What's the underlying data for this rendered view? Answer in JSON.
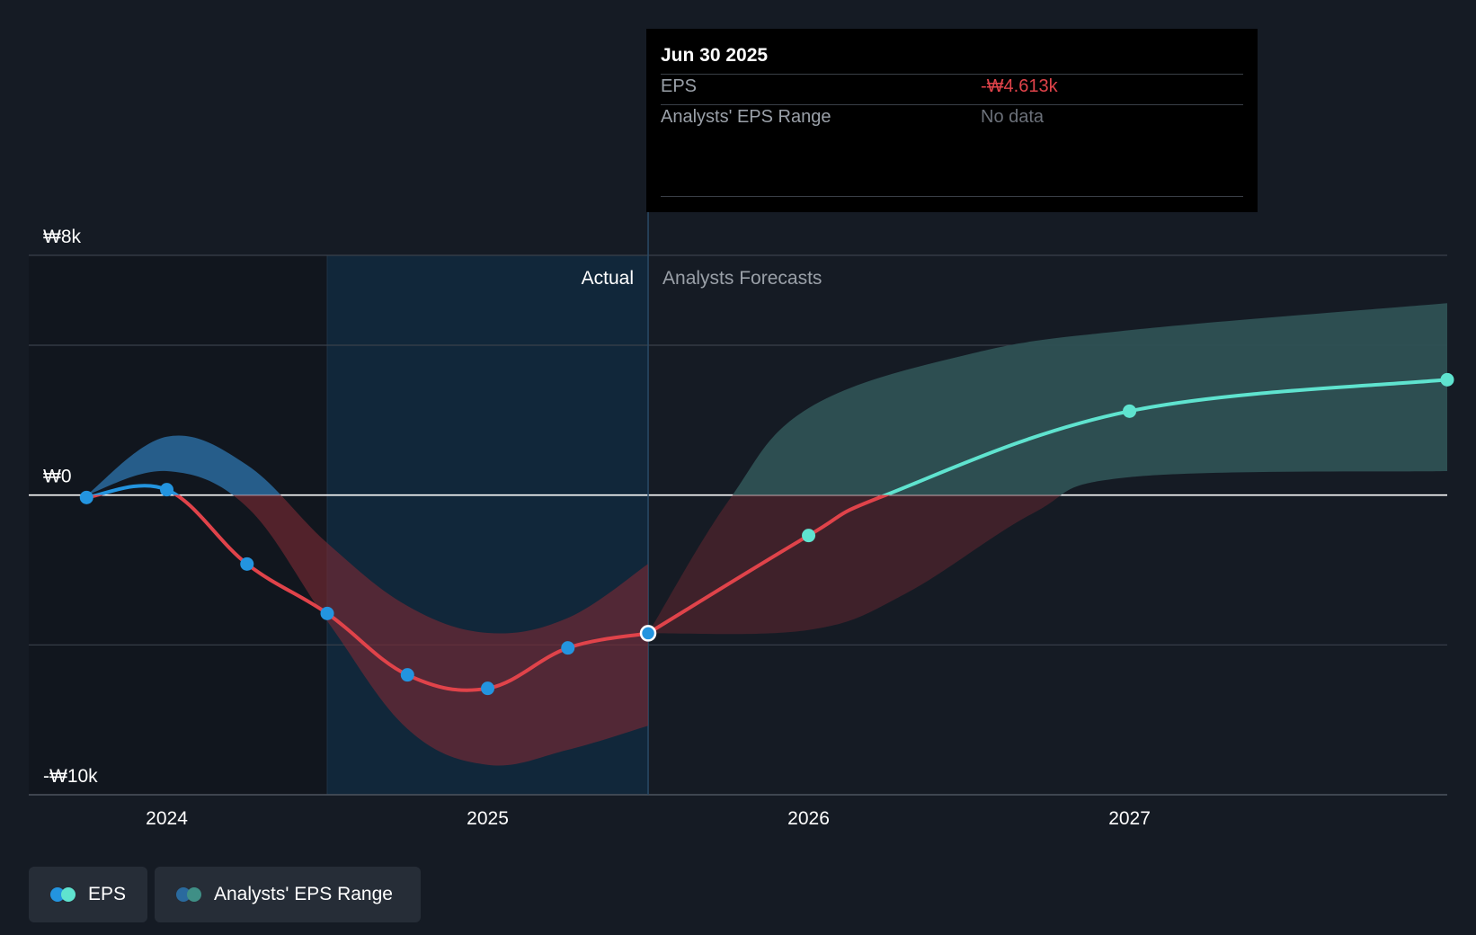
{
  "chart_data": {
    "type": "line",
    "y_axis": {
      "ticks": [
        {
          "value": 8000,
          "label": "₩8k"
        },
        {
          "value": 0,
          "label": "₩0"
        },
        {
          "value": -10000,
          "label": "-₩10k"
        }
      ],
      "ylim": [
        -10000,
        8000
      ],
      "gridlines": [
        8000,
        5000,
        -5000,
        -10000
      ]
    },
    "x_axis": {
      "ticks": [
        {
          "value": 2024.0,
          "label": "2024"
        },
        {
          "value": 2025.0,
          "label": "2025"
        },
        {
          "value": 2026.0,
          "label": "2026"
        },
        {
          "value": 2027.0,
          "label": "2027"
        }
      ],
      "xlim": [
        2023.57,
        2027.99
      ]
    },
    "regions": {
      "actual_label": "Actual",
      "forecast_label": "Analysts Forecasts",
      "highlight_start": 2024.5,
      "divider": 2025.5
    },
    "series": [
      {
        "name": "EPS",
        "kind": "actual",
        "points": [
          {
            "x": 2023.75,
            "y": -80
          },
          {
            "x": 2024.0,
            "y": 180
          },
          {
            "x": 2024.25,
            "y": -2300
          },
          {
            "x": 2024.5,
            "y": -3950
          },
          {
            "x": 2024.75,
            "y": -6000
          },
          {
            "x": 2025.0,
            "y": -6450
          },
          {
            "x": 2025.25,
            "y": -5100
          },
          {
            "x": 2025.5,
            "y": -4613
          }
        ]
      },
      {
        "name": "EPS",
        "kind": "forecast",
        "points": [
          {
            "x": 2025.5,
            "y": -4613
          },
          {
            "x": 2026.0,
            "y": -1350
          },
          {
            "x": 2026.24,
            "y": 0
          },
          {
            "x": 2027.0,
            "y": 2800
          },
          {
            "x": 2027.99,
            "y": 3850
          }
        ]
      }
    ],
    "ranges": [
      {
        "name": "Analysts' EPS Range",
        "kind": "actual",
        "upper": [
          {
            "x": 2023.75,
            "y": 0
          },
          {
            "x": 2024.0,
            "y": 1950
          },
          {
            "x": 2024.25,
            "y": 1000
          },
          {
            "x": 2024.5,
            "y": -1600
          },
          {
            "x": 2024.75,
            "y": -3700
          },
          {
            "x": 2025.0,
            "y": -4600
          },
          {
            "x": 2025.25,
            "y": -4100
          },
          {
            "x": 2025.5,
            "y": -2300
          }
        ],
        "lower": [
          {
            "x": 2023.75,
            "y": 0
          },
          {
            "x": 2024.0,
            "y": 800
          },
          {
            "x": 2024.25,
            "y": -400
          },
          {
            "x": 2024.5,
            "y": -4200
          },
          {
            "x": 2024.75,
            "y": -7800
          },
          {
            "x": 2025.0,
            "y": -9000
          },
          {
            "x": 2025.25,
            "y": -8500
          },
          {
            "x": 2025.5,
            "y": -7700
          }
        ]
      },
      {
        "name": "Analysts' EPS Range",
        "kind": "forecast",
        "upper": [
          {
            "x": 2025.5,
            "y": -4613
          },
          {
            "x": 2025.75,
            "y": -200
          },
          {
            "x": 2026.0,
            "y": 2900
          },
          {
            "x": 2026.5,
            "y": 4700
          },
          {
            "x": 2027.0,
            "y": 5500
          },
          {
            "x": 2027.99,
            "y": 6400
          }
        ],
        "lower": [
          {
            "x": 2025.5,
            "y": -4613
          },
          {
            "x": 2026.0,
            "y": -4500
          },
          {
            "x": 2026.3,
            "y": -3300
          },
          {
            "x": 2026.7,
            "y": -600
          },
          {
            "x": 2027.0,
            "y": 600
          },
          {
            "x": 2027.99,
            "y": 800
          }
        ]
      }
    ],
    "colors": {
      "eps_positive": "#2394df",
      "eps_negative": "#e0434a",
      "eps_forecast_positive": "#5fe3cf",
      "range_actual_positive": "#2a6a9e",
      "range_negative": "#7a2a34",
      "range_forecast_positive": "#2e5154",
      "highlight_band": "#11273a",
      "divider": "#2a4a66",
      "zero_line": "#ffffff",
      "gridline": "#3a414b"
    }
  },
  "tooltip": {
    "date": "Jun 30 2025",
    "eps_label": "EPS",
    "eps_value": "-₩4.613k",
    "eps_value_color": "#e0434a",
    "range_label": "Analysts' EPS Range",
    "range_value": "No data",
    "range_value_color": "#6b7079"
  },
  "legend": [
    {
      "label": "EPS",
      "dot_colors": [
        "#2394df",
        "#5fe3cf"
      ]
    },
    {
      "label": "Analysts' EPS Range",
      "dot_colors": [
        "#2a6a9e",
        "#3f8f86"
      ]
    }
  ]
}
